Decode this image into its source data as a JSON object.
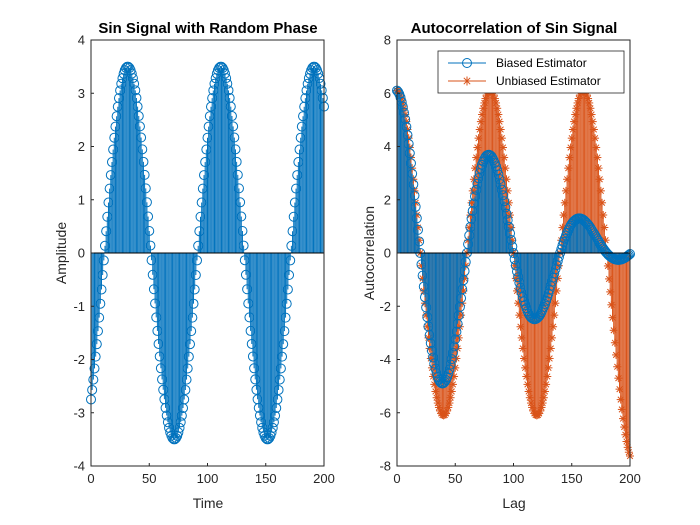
{
  "colors": {
    "series1": "#0072BD",
    "series2": "#D95319",
    "axis": "#262626"
  },
  "chart_data": [
    {
      "type": "stem",
      "title": "Sin Signal with Random Phase",
      "xlabel": "Time",
      "ylabel": "Amplitude",
      "xlim": [
        0,
        200
      ],
      "ylim": [
        -4,
        4
      ],
      "xticks": [
        "0",
        "50",
        "100",
        "150",
        "200"
      ],
      "yticks": [
        "-4",
        "-3",
        "-2",
        "-1",
        "0",
        "1",
        "2",
        "3",
        "4"
      ],
      "grid": false,
      "marker": "circle",
      "amplitude": 3.5,
      "period_samples": 80,
      "num_samples": 201,
      "first_value": -2.75,
      "approx_peaks_x": [
        32,
        112,
        192
      ],
      "approx_troughs_x": [
        72,
        152
      ]
    },
    {
      "type": "stem",
      "title": "Autocorrelation of Sin Signal",
      "xlabel": "Lag",
      "ylabel": "Autocorrelation",
      "xlim": [
        0,
        200
      ],
      "ylim": [
        -8,
        8
      ],
      "xticks": [
        "0",
        "50",
        "100",
        "150",
        "200"
      ],
      "yticks": [
        "-8",
        "-6",
        "-4",
        "-2",
        "0",
        "2",
        "4",
        "6",
        "8"
      ],
      "grid": false,
      "legend_position": "top-right",
      "series": [
        {
          "name": "Biased Estimator",
          "marker": "circle",
          "approx_values_at": {
            "0": 6.1,
            "40": -5.0,
            "80": 3.7,
            "120": -2.5,
            "160": 1.2,
            "200": 0.0
          }
        },
        {
          "name": "Unbiased Estimator",
          "marker": "asterisk",
          "approx_values_at": {
            "0": 6.1,
            "40": -6.1,
            "80": 6.1,
            "120": -6.1,
            "160": 6.1,
            "200": -7.6
          }
        }
      ]
    }
  ]
}
